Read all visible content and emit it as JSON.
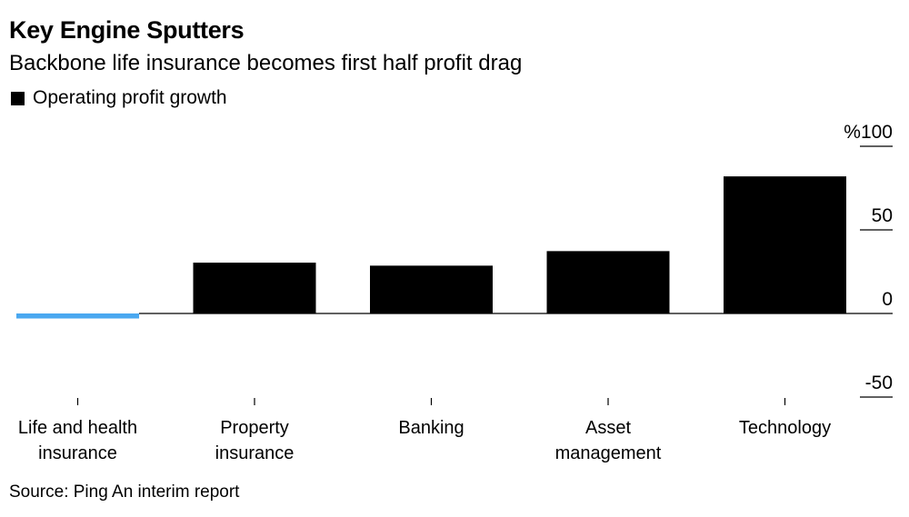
{
  "title": "Key Engine Sputters",
  "subtitle": "Backbone life insurance becomes first half profit drag",
  "legend": [
    {
      "label": "Operating profit growth",
      "color": "#000000"
    }
  ],
  "source": "Source: Ping An interim report",
  "chart_data": {
    "type": "bar",
    "title": "Key Engine Sputters",
    "subtitle": "Backbone life insurance becomes first half profit drag",
    "categories": [
      [
        "Life and health",
        "insurance"
      ],
      [
        "Property",
        "insurance"
      ],
      [
        "Banking"
      ],
      [
        "Asset",
        "management"
      ],
      [
        "Technology"
      ]
    ],
    "series": [
      {
        "name": "Operating profit growth",
        "values": [
          -3,
          30.4,
          28.6,
          37.3,
          82
        ]
      }
    ],
    "bar_colors": [
      "#4aa8f0",
      "#000000",
      "#000000",
      "#000000",
      "#000000"
    ],
    "ylabel": "%",
    "yticks": [
      {
        "value": 100,
        "label": "%100"
      },
      {
        "value": 50,
        "label": "50"
      },
      {
        "value": 0,
        "label": "0"
      },
      {
        "value": -50,
        "label": "-50"
      }
    ],
    "ylim": [
      -50,
      100
    ],
    "y_axis_position": "right",
    "legend_position": "top-left",
    "grid": false
  }
}
